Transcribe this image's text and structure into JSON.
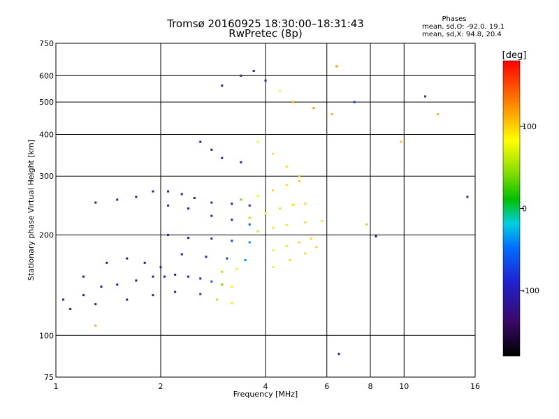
{
  "header": {
    "title": "Tromsø 20160925 18:30:00–18:31:43",
    "subtitle": "RwPretec (8p)",
    "phases_label": "Phases",
    "stat_o": "mean, sd,O: -92.0, 19.1",
    "stat_x": "mean, sd,X:  94.8, 20.4"
  },
  "colorbar": {
    "label": "[deg]",
    "ticks": [
      "100",
      "0",
      "-100"
    ],
    "tick_values": [
      100,
      0,
      -100
    ],
    "range": [
      -180,
      180
    ]
  },
  "chart_data": {
    "type": "scatter",
    "title": "Tromsø 20160925 18:30:00–18:31:43",
    "subtitle": "RwPretec (8p)",
    "xlabel": "Frequency [MHz]",
    "ylabel": "Stationary phase Virtual Height [km]",
    "xscale": "log",
    "yscale": "log",
    "xlim": [
      1,
      16
    ],
    "ylim": [
      75,
      750
    ],
    "x_ticks": [
      1,
      2,
      4,
      6,
      8,
      10,
      16
    ],
    "x_tick_labels": [
      "1",
      "2",
      "4",
      "6",
      "8",
      "10",
      "16"
    ],
    "y_ticks": [
      75,
      100,
      200,
      300,
      400,
      500,
      600,
      750
    ],
    "y_tick_labels": [
      "75",
      "100",
      "200",
      "300",
      "400",
      "500",
      "600",
      "750"
    ],
    "grid": true,
    "color_encodes": "phase [deg]",
    "series": [
      {
        "values": [
          [
            1.05,
            128,
            -110
          ],
          [
            1.2,
            132,
            -115
          ],
          [
            1.35,
            140,
            -112
          ],
          [
            1.5,
            142,
            -108
          ],
          [
            1.7,
            146,
            -110
          ],
          [
            1.9,
            150,
            -108
          ],
          [
            2.05,
            150,
            -105
          ],
          [
            2.2,
            152,
            -102
          ],
          [
            2.4,
            150,
            -98
          ],
          [
            2.6,
            148,
            -90
          ],
          [
            2.8,
            145,
            -60
          ],
          [
            3.0,
            142,
            40
          ],
          [
            3.2,
            140,
            85
          ],
          [
            1.1,
            120,
            -112
          ],
          [
            1.3,
            124,
            -110
          ],
          [
            1.6,
            128,
            -108
          ],
          [
            1.9,
            132,
            -106
          ],
          [
            2.2,
            135,
            -104
          ],
          [
            2.6,
            133,
            -80
          ],
          [
            2.9,
            128,
            60
          ],
          [
            3.2,
            125,
            90
          ],
          [
            1.2,
            150,
            -116
          ],
          [
            1.4,
            165,
            -118
          ],
          [
            1.6,
            170,
            -114
          ],
          [
            1.8,
            165,
            -110
          ],
          [
            2.0,
            160,
            -106
          ]
        ]
      },
      {
        "values": [
          [
            1.3,
            250,
            -112
          ],
          [
            1.5,
            255,
            -106
          ],
          [
            1.7,
            260,
            -104
          ],
          [
            1.9,
            270,
            -102
          ],
          [
            2.1,
            270,
            -100
          ],
          [
            2.3,
            265,
            -98
          ],
          [
            2.5,
            258,
            -96
          ],
          [
            2.8,
            250,
            -95
          ],
          [
            3.2,
            248,
            -92
          ],
          [
            3.6,
            245,
            -88
          ],
          [
            2.1,
            245,
            -100
          ],
          [
            2.4,
            240,
            -98
          ],
          [
            2.8,
            228,
            -96
          ],
          [
            3.2,
            222,
            -88
          ],
          [
            3.6,
            215,
            -60
          ],
          [
            2.1,
            200,
            -98
          ],
          [
            2.4,
            196,
            -96
          ],
          [
            2.8,
            195,
            -90
          ],
          [
            3.2,
            192,
            -70
          ],
          [
            3.6,
            190,
            -40
          ],
          [
            2.3,
            175,
            -100
          ],
          [
            2.7,
            172,
            -92
          ],
          [
            3.1,
            170,
            -70
          ],
          [
            3.5,
            168,
            -40
          ]
        ]
      },
      {
        "values": [
          [
            3.4,
            255,
            40
          ],
          [
            3.8,
            262,
            80
          ],
          [
            4.2,
            272,
            92
          ],
          [
            4.6,
            282,
            96
          ],
          [
            5.0,
            290,
            98
          ],
          [
            3.6,
            225,
            60
          ],
          [
            4.0,
            232,
            85
          ],
          [
            4.4,
            240,
            92
          ],
          [
            4.8,
            246,
            96
          ],
          [
            5.2,
            248,
            96
          ],
          [
            3.8,
            205,
            70
          ],
          [
            4.2,
            210,
            88
          ],
          [
            4.6,
            214,
            92
          ],
          [
            5.2,
            218,
            96
          ],
          [
            5.8,
            220,
            90
          ],
          [
            4.2,
            180,
            80
          ],
          [
            4.6,
            185,
            90
          ],
          [
            5.0,
            190,
            94
          ],
          [
            5.4,
            195,
            96
          ],
          [
            4.2,
            160,
            85
          ],
          [
            4.7,
            168,
            92
          ],
          [
            5.2,
            176,
            96
          ],
          [
            5.6,
            184,
            98
          ],
          [
            3.0,
            155,
            60
          ],
          [
            3.3,
            158,
            80
          ]
        ]
      },
      {
        "values": [
          [
            2.6,
            380,
            -98
          ],
          [
            2.8,
            360,
            -96
          ],
          [
            3.0,
            340,
            -92
          ],
          [
            3.4,
            330,
            -84
          ],
          [
            3.8,
            380,
            80
          ],
          [
            4.2,
            350,
            92
          ],
          [
            4.6,
            320,
            96
          ],
          [
            5.0,
            300,
            98
          ],
          [
            3.0,
            560,
            -96
          ],
          [
            3.4,
            600,
            -98
          ],
          [
            3.7,
            620,
            -100
          ],
          [
            4.0,
            580,
            -92
          ],
          [
            4.4,
            540,
            80
          ],
          [
            4.8,
            500,
            110
          ],
          [
            5.5,
            480,
            120
          ],
          [
            6.2,
            460,
            110
          ],
          [
            6.4,
            640,
            120
          ],
          [
            7.2,
            500,
            -80
          ],
          [
            7.8,
            215,
            60
          ],
          [
            8.3,
            198,
            -110
          ],
          [
            9.8,
            380,
            105
          ],
          [
            11.5,
            520,
            -80
          ],
          [
            12.5,
            460,
            110
          ],
          [
            15.2,
            260,
            -100
          ],
          [
            6.5,
            88,
            -120
          ],
          [
            1.3,
            107,
            110
          ]
        ]
      }
    ]
  }
}
